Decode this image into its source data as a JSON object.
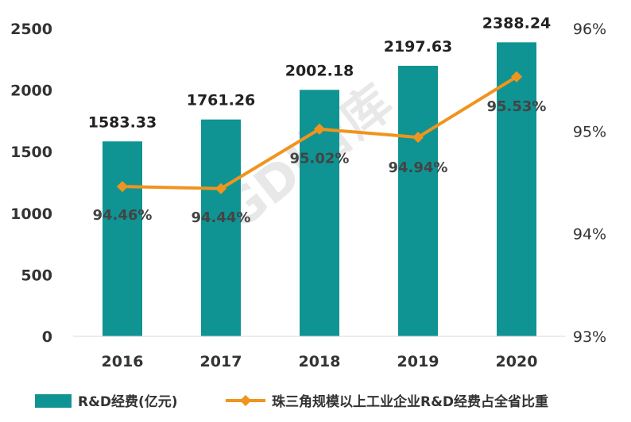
{
  "chart_data": {
    "type": "bar",
    "categories": [
      "2016",
      "2017",
      "2018",
      "2019",
      "2020"
    ],
    "series": [
      {
        "name": "R&D经费(亿元)",
        "type": "bar",
        "axis": "left",
        "values": [
          1583.33,
          1761.26,
          2002.18,
          2197.63,
          2388.24
        ],
        "labels": [
          "1583.33",
          "1761.26",
          "2002.18",
          "2197.63",
          "2388.24"
        ],
        "color": "#0f9493"
      },
      {
        "name": "珠三角规模以上工业企业R&D经费占全省比重",
        "type": "line",
        "axis": "right",
        "values": [
          94.46,
          94.44,
          95.02,
          94.94,
          95.53
        ],
        "labels": [
          "94.46%",
          "94.44%",
          "95.02%",
          "94.94%",
          "95.53%"
        ],
        "color": "#f0941d"
      }
    ],
    "left_axis": {
      "ylim": [
        0,
        2500
      ],
      "ticks": [
        "0",
        "500",
        "1000",
        "1500",
        "2000",
        "2500"
      ]
    },
    "right_axis": {
      "ylim": [
        93,
        96
      ],
      "ticks": [
        "93%",
        "94%",
        "95%",
        "96%"
      ]
    },
    "grid": false,
    "legend_position": "bottom",
    "watermark": "GDI智库"
  }
}
